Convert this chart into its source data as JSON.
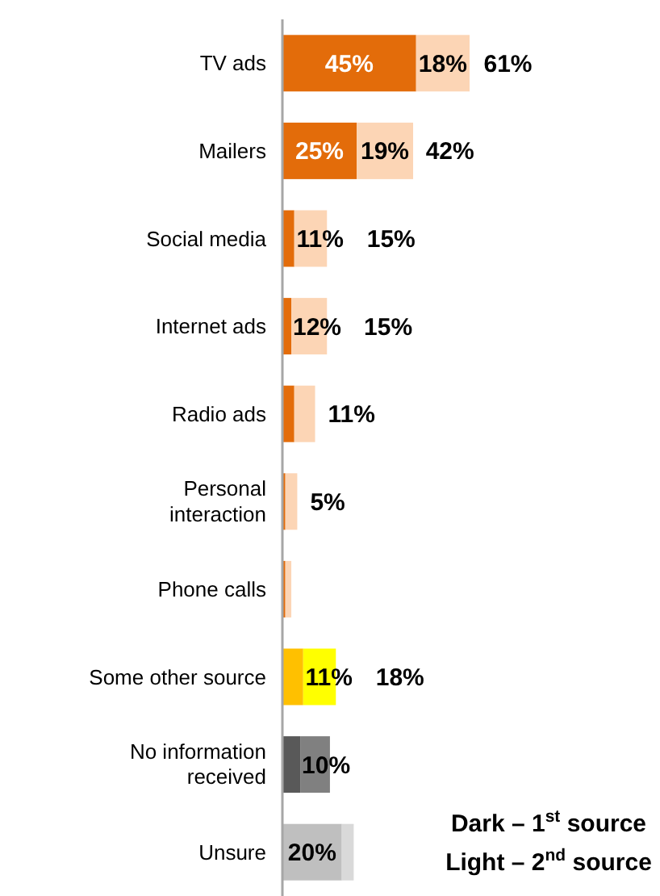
{
  "chart_data": {
    "type": "bar",
    "orientation": "horizontal",
    "stacked": true,
    "categories": [
      "TV ads",
      "Mailers",
      "Social media",
      "Internet ads",
      "Radio ads",
      "Personal interaction",
      "Phone calls",
      "Some other source",
      "No information received",
      "Unsure"
    ],
    "series": [
      {
        "colors": [
          "#e36c0a",
          "#e36c0a",
          "#e36c0a",
          "#e36c0a",
          "#e36c0a",
          "#e36c0a",
          "#e36c0a",
          "#ffc000",
          "#595959",
          "#bfbfbf"
        ],
        "values": [
          45,
          25,
          4,
          3,
          4,
          1,
          1,
          7,
          6,
          20
        ],
        "value_labels": [
          "45%",
          "25%",
          null,
          null,
          null,
          null,
          null,
          null,
          null,
          "20%"
        ]
      },
      {
        "colors": [
          "#fcd5b5",
          "#fcd5b5",
          "#fcd5b5",
          "#fcd5b5",
          "#fcd5b5",
          "#fcd5b5",
          "#fcd5b5",
          "#ffff00",
          "#808080",
          "#d9d9d9"
        ],
        "values": [
          18,
          19,
          11,
          12,
          7,
          4,
          2,
          11,
          10,
          4
        ],
        "value_labels": [
          "18%",
          "19%",
          "11%",
          "12%",
          null,
          null,
          null,
          "11%",
          "10%",
          null
        ]
      }
    ],
    "annotations": [
      {
        "text": "61%",
        "x": 61,
        "y": "TV ads"
      },
      {
        "text": "42%",
        "x": 42,
        "y": "Mailers"
      },
      {
        "text": "15%",
        "x": 15,
        "y": "Social media"
      },
      {
        "text": "15%",
        "x": 15,
        "y": "Internet ads"
      },
      {
        "text": "11%",
        "x": 11,
        "y": "Radio ads"
      },
      {
        "text": "5%",
        "x": 5,
        "y": "Personal interaction"
      },
      {
        "text": "18%",
        "x": 18,
        "y": "Some other source"
      },
      "Dark – 1$^{st}$ source",
      "Light – 2$^{nd}$ source"
    ]
  }
}
